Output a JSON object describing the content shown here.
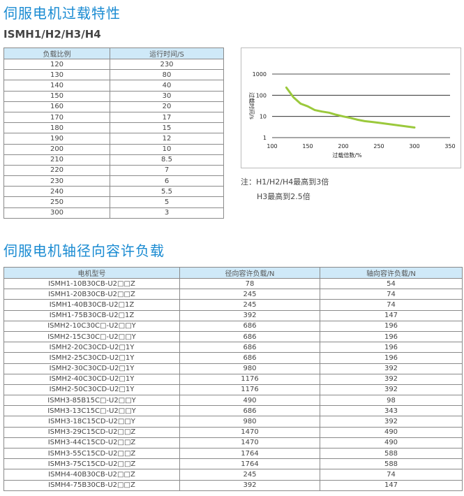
{
  "section1": {
    "title": "伺服电机过载特性",
    "subtitle": "ISMH1/H2/H3/H4",
    "table": {
      "header": [
        "负载比例",
        "运行时间/S"
      ],
      "rows": [
        [
          120,
          230
        ],
        [
          130,
          80
        ],
        [
          140,
          40
        ],
        [
          150,
          30
        ],
        [
          160,
          20
        ],
        [
          170,
          17
        ],
        [
          180,
          15
        ],
        [
          190,
          12
        ],
        [
          200,
          10
        ],
        [
          210,
          8.5
        ],
        [
          220,
          7
        ],
        [
          230,
          6
        ],
        [
          240,
          5.5
        ],
        [
          250,
          5
        ],
        [
          300,
          3
        ]
      ]
    }
  },
  "chart_data": {
    "type": "line",
    "xlabel": "过载倍数/%",
    "ylabel": "过载时间/s",
    "x": [
      120,
      130,
      140,
      150,
      160,
      170,
      180,
      190,
      200,
      210,
      220,
      230,
      240,
      250,
      300
    ],
    "values": [
      230,
      80,
      40,
      30,
      20,
      17,
      15,
      12,
      10,
      8.5,
      7,
      6,
      5.5,
      5,
      3
    ],
    "color": "#9bc93c",
    "log_y": true,
    "grid": true,
    "xlim": [
      100,
      350
    ],
    "xticks": [
      100,
      150,
      200,
      250,
      300,
      350
    ],
    "ylim": [
      1,
      1000
    ],
    "yticks": [
      1,
      10,
      100,
      1000
    ]
  },
  "note": [
    "注：H1/H2/H4最高到3倍",
    "H3最高到2.5倍"
  ],
  "section2": {
    "title": "伺服电机轴径向容许负载",
    "table": {
      "header": [
        "电机型号",
        "径向容许负载/N",
        "轴向容许负载/N"
      ],
      "rows": [
        [
          "ISMH1-10B30CB-U2□□Z",
          78,
          54
        ],
        [
          "ISMH1-20B30CB-U2□□Z",
          245,
          74
        ],
        [
          "ISMH1-40B30CB-U2□1Z",
          245,
          74
        ],
        [
          "ISMH1-75B30CB-U2□1Z",
          392,
          147
        ],
        [
          "ISMH2-10C30C□-U2□□Y",
          686,
          196
        ],
        [
          "ISMH2-15C30C□-U2□□Y",
          686,
          196
        ],
        [
          "ISMH2-20C30CD-U2□1Y",
          686,
          196
        ],
        [
          "ISMH2-25C30CD-U2□1Y",
          686,
          196
        ],
        [
          "ISMH2-30C30CD-U2□1Y",
          980,
          392
        ],
        [
          "ISMH2-40C30CD-U2□1Y",
          1176,
          392
        ],
        [
          "ISMH2-50C30CD-U2□1Y",
          1176,
          392
        ],
        [
          "ISMH3-85B15C□-U2□□Y",
          490,
          98
        ],
        [
          "ISMH3-13C15C□-U2□□Y",
          686,
          343
        ],
        [
          "ISMH3-18C15CD-U2□□Y",
          980,
          392
        ],
        [
          "ISMH3-29C15CD-U2□□Z",
          1470,
          490
        ],
        [
          "ISMH3-44C15CD-U2□□Z",
          1470,
          490
        ],
        [
          "ISMH3-55C15CD-U2□□Z",
          1764,
          588
        ],
        [
          "ISMH3-75C15CD-U2□□Z",
          1764,
          588
        ],
        [
          "ISMH4-40B30CB-U2□□Z",
          245,
          74
        ],
        [
          "ISMH4-75B30CB-U2□□Z",
          392,
          147
        ]
      ]
    }
  }
}
